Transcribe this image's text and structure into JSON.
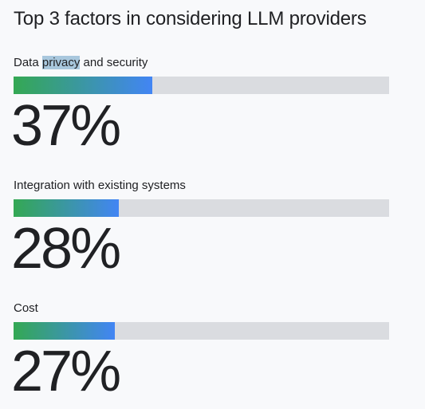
{
  "title": "Top 3 factors in considering LLM providers",
  "factors": [
    {
      "label_pre": "Data ",
      "label_highlight": "privacy",
      "label_post": " and security",
      "percent_text": "37%",
      "bar_fraction": 0.37
    },
    {
      "label": "Integration with existing systems",
      "percent_text": "28%",
      "bar_fraction": 0.28
    },
    {
      "label": "Cost",
      "percent_text": "27%",
      "bar_fraction": 0.27
    }
  ],
  "colors": {
    "background": "#f8f9fb",
    "bar_track": "#dadce0",
    "bar_gradient_start": "#34a853",
    "bar_gradient_end": "#4285f4",
    "text_highlight": "#a8c7dd"
  }
}
